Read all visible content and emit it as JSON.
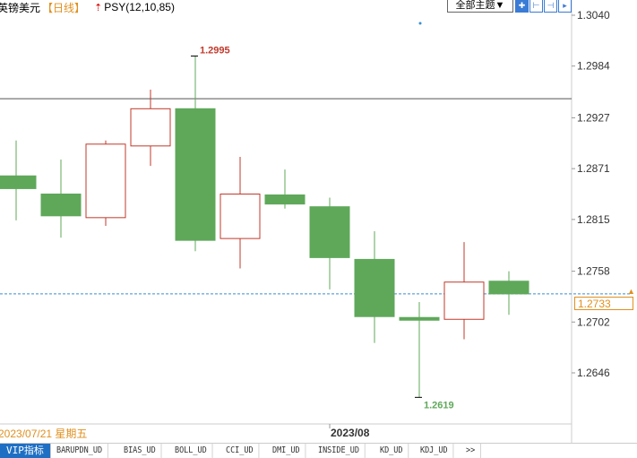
{
  "header": {
    "title": "英镑美元",
    "period": "【日线】",
    "indicator": "PSY(12,10,85)",
    "theme_button": "全部主题▼",
    "toolbar_icons": [
      "grid-icon",
      "zoom-in-icon",
      "zoom-out-icon",
      "forward-icon"
    ]
  },
  "chart_data": {
    "type": "candlestick",
    "ylim": [
      1.26,
      1.3055
    ],
    "yticks": [
      "1.3040",
      "1.2984",
      "1.2927",
      "1.2871",
      "1.2815",
      "1.2758",
      "1.2702",
      "1.2646"
    ],
    "candles": [
      {
        "o": 1.2863,
        "h": 1.2902,
        "l": 1.2814,
        "c": 1.2849
      },
      {
        "o": 1.2843,
        "h": 1.2881,
        "l": 1.2795,
        "c": 1.2819
      },
      {
        "o": 1.2817,
        "h": 1.2902,
        "l": 1.2808,
        "c": 1.2898
      },
      {
        "o": 1.2896,
        "h": 1.2958,
        "l": 1.2874,
        "c": 1.2937
      },
      {
        "o": 1.2937,
        "h": 1.2995,
        "l": 1.278,
        "c": 1.2792
      },
      {
        "o": 1.2794,
        "h": 1.2884,
        "l": 1.2761,
        "c": 1.2843
      },
      {
        "o": 1.2842,
        "h": 1.287,
        "l": 1.2827,
        "c": 1.2832
      },
      {
        "o": 1.2829,
        "h": 1.2839,
        "l": 1.2738,
        "c": 1.2773
      },
      {
        "o": 1.2771,
        "h": 1.2802,
        "l": 1.2679,
        "c": 1.2708
      },
      {
        "o": 1.2707,
        "h": 1.2724,
        "l": 1.2619,
        "c": 1.2704
      },
      {
        "o": 1.2705,
        "h": 1.279,
        "l": 1.2683,
        "c": 1.2746
      },
      {
        "o": 1.2747,
        "h": 1.2758,
        "l": 1.271,
        "c": 1.2733
      }
    ],
    "high_label": "1.2995",
    "low_label": "1.2619",
    "reference_line": 1.2948,
    "current_price": "1.2733",
    "up_color": "#c0392b",
    "down_color": "#5fa85a"
  },
  "footer": {
    "date": "2023/07/21 星期五",
    "month": "2023/08"
  },
  "tabs": [
    "VIP指标",
    "BARUPDN_UD",
    "BIAS_UD",
    "BOLL_UD",
    "CCI_UD",
    "DMI_UD",
    "INSIDE_UD",
    "KD_UD",
    "KDJ_UD",
    ">>"
  ]
}
